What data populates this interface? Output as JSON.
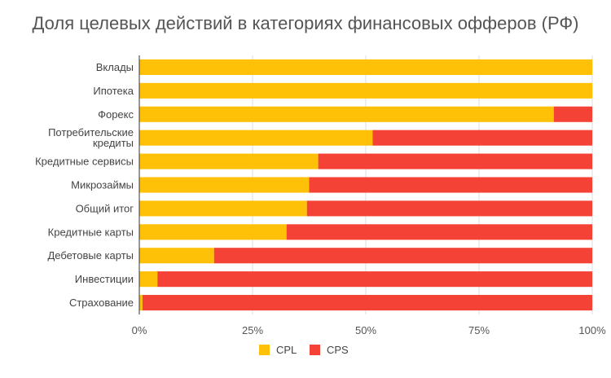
{
  "chart_data": {
    "type": "bar",
    "orientation": "horizontal",
    "stacked": "percent",
    "title": "Доля целевых действий в категориях финансовых офферов (РФ)",
    "categories": [
      [
        "Вклады"
      ],
      [
        "Ипотека"
      ],
      [
        "Форекс"
      ],
      [
        "Потребительские",
        "кредиты"
      ],
      [
        "Кредитные сервисы"
      ],
      [
        "Микрозаймы"
      ],
      [
        "Общий итог"
      ],
      [
        "Кредитные карты"
      ],
      [
        "Дебетовые карты"
      ],
      [
        "Инвестиции"
      ],
      [
        "Страхование"
      ]
    ],
    "series": [
      {
        "name": "CPL",
        "color": "#FFC107",
        "values": [
          100,
          100,
          91.5,
          51.5,
          39.5,
          37.5,
          37,
          32.5,
          16.5,
          4,
          0.7
        ]
      },
      {
        "name": "CPS",
        "color": "#F44336",
        "values": [
          0,
          0,
          8.5,
          48.5,
          60.5,
          62.5,
          63,
          67.5,
          83.5,
          96,
          99.3
        ]
      }
    ],
    "xlim": [
      0,
      100
    ],
    "xticks": [
      "0%",
      "25%",
      "50%",
      "75%",
      "100%"
    ],
    "xtick_values": [
      0,
      25,
      50,
      75,
      100
    ],
    "legend_position": "bottom",
    "grid": "vertical"
  }
}
